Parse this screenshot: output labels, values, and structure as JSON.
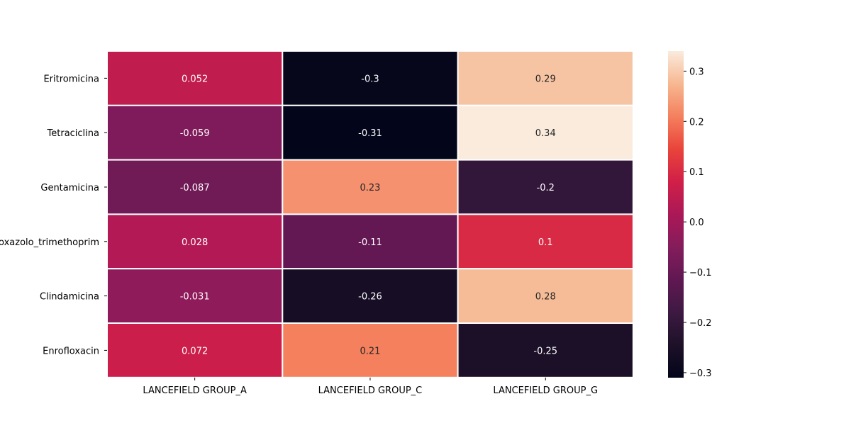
{
  "chart_data": {
    "type": "heatmap",
    "rows": [
      "Eritromicina",
      "Tetraciclina",
      "Gentamicina",
      "Sulfametoxazolo_trimethoprim",
      "Clindamicina",
      "Enrofloxacin"
    ],
    "columns": [
      "LANCEFIELD GROUP_A",
      "LANCEFIELD GROUP_C",
      "LANCEFIELD GROUP_G"
    ],
    "values": [
      [
        0.052,
        -0.3,
        0.29
      ],
      [
        -0.059,
        -0.31,
        0.34
      ],
      [
        -0.087,
        0.23,
        -0.2
      ],
      [
        0.028,
        -0.11,
        0.1
      ],
      [
        -0.031,
        -0.26,
        0.28
      ],
      [
        0.072,
        0.21,
        -0.25
      ]
    ],
    "value_labels": [
      [
        "0.052",
        "-0.3",
        "0.29"
      ],
      [
        "-0.059",
        "-0.31",
        "0.34"
      ],
      [
        "-0.087",
        "0.23",
        "-0.2"
      ],
      [
        "0.028",
        "-0.11",
        "0.1"
      ],
      [
        "-0.031",
        "-0.26",
        "0.28"
      ],
      [
        "0.072",
        "0.21",
        "-0.25"
      ]
    ],
    "colorbar": {
      "colormap": "rocket",
      "range": [
        -0.31,
        0.34
      ],
      "ticks": [
        -0.3,
        -0.2,
        -0.1,
        0.0,
        0.1,
        0.2,
        0.3
      ],
      "tick_labels": [
        "−0.3",
        "−0.2",
        "−0.1",
        "0.0",
        "0.1",
        "0.2",
        "0.3"
      ]
    },
    "title": "",
    "xlabel": "",
    "ylabel": "",
    "grid": false,
    "annotated": true
  }
}
